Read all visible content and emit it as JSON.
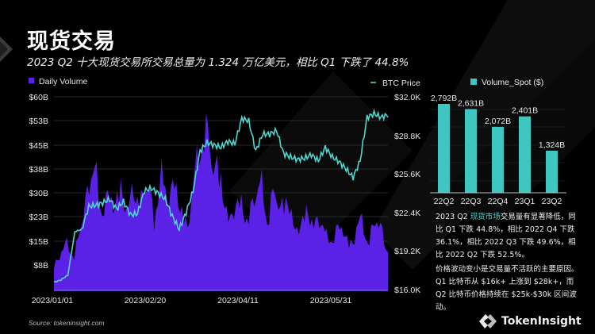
{
  "header": {
    "title": "现货交易",
    "subtitle": "2023 Q2 十大现货交易所交易总量为 1.324 万亿美元，相比 Q1 下跌了 44.8%"
  },
  "colors": {
    "background": "#000000",
    "volume": "#5b21e6",
    "btc_line": "#4fd6d0",
    "bar": "#3ec7c1",
    "highlight_text": "#4fd6d0"
  },
  "chart_data": [
    {
      "type": "area+line",
      "title": "",
      "legend": [
        {
          "name": "Daily Volume",
          "type": "area",
          "color": "#5b21e6",
          "position": "top-left"
        },
        {
          "name": "BTC Price",
          "type": "line",
          "color": "#4fd6d0",
          "position": "top-right"
        }
      ],
      "x_tick_labels": [
        "2023/01/01",
        "2023/02/20",
        "2023/04/11",
        "2023/05/31"
      ],
      "y_left": {
        "label": "Daily Volume",
        "ticks": [
          "$60B",
          "$53B",
          "$45B",
          "$38B",
          "$30B",
          "$23B",
          "$15B",
          "$8B"
        ],
        "range": [
          0,
          60
        ]
      },
      "y_right": {
        "label": "BTC Price",
        "ticks": [
          "$32.0K",
          "$28.8K",
          "$25.6K",
          "$22.4K",
          "$19.2K",
          "$16.0K"
        ],
        "range": [
          16.0,
          32.0
        ]
      },
      "grid": true,
      "x_range": [
        "2023/01/01",
        "2023/06/30"
      ],
      "series": [
        {
          "name": "Daily Volume",
          "unit": "B USD",
          "approx_weekly_values": [
            8,
            12,
            16,
            10,
            22,
            31,
            44,
            25,
            31,
            28,
            33,
            26,
            34,
            28,
            38,
            22,
            39,
            30,
            35,
            27,
            20,
            38,
            48,
            53,
            40,
            38,
            22,
            27,
            29,
            22,
            31,
            36,
            22,
            34,
            26,
            31,
            19,
            22,
            26,
            21,
            24,
            16,
            18,
            22,
            15,
            17,
            25,
            14,
            24,
            20,
            13
          ]
        },
        {
          "name": "BTC Price",
          "unit": "K USD",
          "approx_weekly_values": [
            16.6,
            16.8,
            17.2,
            20.8,
            21.0,
            22.9,
            23.0,
            23.2,
            23.5,
            22.7,
            23.3,
            22.2,
            22.3,
            24.2,
            24.4,
            24.0,
            23.5,
            22.1,
            21.0,
            22.4,
            24.2,
            27.5,
            28.2,
            28.0,
            27.8,
            28.3,
            28.1,
            30.2,
            30.0,
            27.5,
            28.9,
            28.9,
            29.2,
            27.3,
            27.0,
            26.8,
            26.9,
            27.2,
            26.7,
            27.8,
            27.0,
            26.6,
            26.0,
            25.3,
            26.7,
            30.3,
            30.6,
            30.3,
            30.5
          ]
        }
      ]
    },
    {
      "type": "bar",
      "title": "",
      "legend": [
        {
          "name": "Volume_Spot ($)",
          "color": "#3ec7c1"
        }
      ],
      "categories": [
        "22Q2",
        "22Q3",
        "22Q4",
        "23Q1",
        "23Q2"
      ],
      "values": [
        2792,
        2631,
        2072,
        2401,
        1324
      ],
      "data_labels": [
        "2,792B",
        "2,631B",
        "2,072B",
        "2,401B",
        "1,324B"
      ],
      "unit": "B USD",
      "grid": true
    }
  ],
  "description": {
    "para1_prefix": "2023 Q2 ",
    "para1_highlight": "现货市场",
    "para1_rest": "交易量有显著降低，同比 Q1 下跌 44.8%，相比 2022 Q4 下跌 36.1%，相比 2022 Q3 下跌 49.6%，相比 2022 Q2 下跌 52.5%。",
    "para2": "价格波动变小是交易量不活跃的主要原因。Q1 比特币从 $16k+ 上涨到 $28k+，而 Q2 比特币价格持续在 $25k-$30k 区间波动。"
  },
  "footer": {
    "source": "Source: tokeninsight.com",
    "brand": "TokenInsight"
  }
}
